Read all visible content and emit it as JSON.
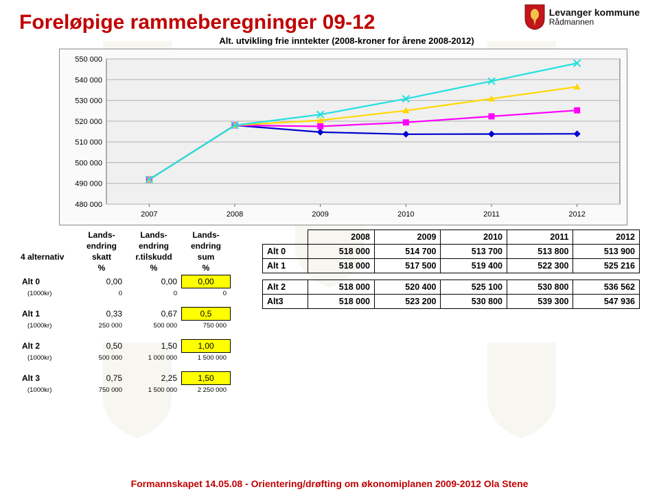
{
  "brand": {
    "main": "Levanger kommune",
    "sub": "Rådmannen"
  },
  "title": "Foreløpige rammeberegninger 09-12",
  "chart": {
    "subtitle": "Alt. utvikling frie inntekter (2008-kroner for årene 2008-2012)",
    "ymin": 480000,
    "ymax": 550000,
    "ytick_step": 10000,
    "yticks": [
      "480 000",
      "490 000",
      "500 000",
      "510 000",
      "520 000",
      "530 000",
      "540 000",
      "550 000"
    ],
    "xlabels": [
      "2007",
      "2008",
      "2009",
      "2010",
      "2011",
      "2012"
    ],
    "bg": "#f0f0f0",
    "grid": "#b0b0b0",
    "series": [
      {
        "label": "Alt 0",
        "color": "#0000d0",
        "marker": "diamond",
        "values": [
          491854,
          518000,
          514700,
          513700,
          513800,
          513900
        ]
      },
      {
        "label": "Alt 1",
        "color": "#ff00ff",
        "marker": "square",
        "values": [
          491854,
          518000,
          517500,
          519400,
          522300,
          525216
        ]
      },
      {
        "label": "Alt 2",
        "color": "#ffd800",
        "marker": "triangle",
        "values": [
          491854,
          518000,
          520400,
          525100,
          530800,
          536562
        ]
      },
      {
        "label": "Alt 3",
        "color": "#20e0e0",
        "marker": "cross",
        "values": [
          491854,
          518000,
          523200,
          530800,
          539300,
          547936
        ]
      }
    ]
  },
  "left_table": {
    "header_col0": "4 alternativ",
    "header_block1": [
      "Lands-",
      "endring",
      "skatt",
      "%"
    ],
    "header_block2": [
      "Lands-",
      "endring",
      "r.tilskudd",
      "%"
    ],
    "header_block3": [
      "Lands-",
      "endring",
      "sum",
      "%"
    ],
    "rows": [
      {
        "label": "Alt 0",
        "a": "0,00",
        "b": "0,00",
        "c": "0,00",
        "hl": true,
        "sub": [
          "(1000kr)",
          "0",
          "0",
          "0"
        ]
      },
      {
        "label": "Alt 1",
        "a": "0,33",
        "b": "0,67",
        "c": "0,5",
        "hl": true,
        "sub": [
          "(1000kr)",
          "250 000",
          "500 000",
          "750 000"
        ]
      },
      {
        "label": "Alt 2",
        "a": "0,50",
        "b": "1,50",
        "c": "1,00",
        "hl": true,
        "sub": [
          "(1000kr)",
          "500 000",
          "1 000 000",
          "1 500 000"
        ]
      },
      {
        "label": "Alt 3",
        "a": "0,75",
        "b": "2,25",
        "c": "1,50",
        "hl": true,
        "sub": [
          "(1000kr)",
          "750 000",
          "1 500 000",
          "2 250 000"
        ]
      }
    ]
  },
  "right_table": {
    "headers": [
      "",
      "2008",
      "2009",
      "2010",
      "2011",
      "2012"
    ],
    "rows": [
      [
        "Alt 0",
        "518 000",
        "514 700",
        "513 700",
        "513 800",
        "513 900"
      ],
      [
        "Alt 1",
        "518 000",
        "517 500",
        "519 400",
        "522 300",
        "525 216"
      ],
      [
        "Alt 2",
        "518 000",
        "520 400",
        "525 100",
        "530 800",
        "536 562"
      ],
      [
        "Alt3",
        "518 000",
        "523 200",
        "530 800",
        "539 300",
        "547 936"
      ]
    ]
  },
  "footer": "Formannskapet 14.05.08 - Orientering/drøfting om økonomiplanen 2009-2012 Ola Stene"
}
